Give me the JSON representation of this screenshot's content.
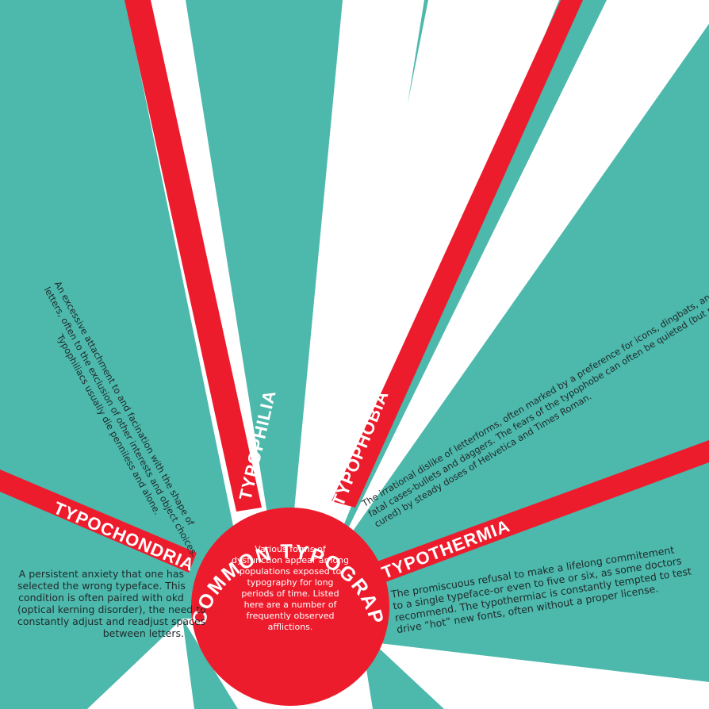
{
  "poster": {
    "colors": {
      "teal": "#4db8ac",
      "red": "#ec1c2d",
      "white": "#ffffff",
      "ink": "#1f2a2a"
    },
    "title": "COMMON TYPOGRAPHIC DISEASES",
    "intro": "Various forms of dysfunction appear among populations exposed to typography for long periods of time. Listed here are a number of frequently observed afflictions.",
    "diseases": [
      {
        "name": "TYPOCHONDRIA",
        "description_lines": [
          "A persistent anxiety that one has",
          "selected the wrong typeface. This",
          "condition is often paired with okd",
          "(optical kerning disorder), the need to",
          "constantly adjust and readjust spaces",
          "between letters."
        ]
      },
      {
        "name": "TYPOPHILIA",
        "description_lines": [
          "An excessive attachment to and facination with the shape of",
          "letters, often to the exclusion of other interests and object choices.",
          "Typophiliacs usually die penniless and alone."
        ]
      },
      {
        "name": "TYPOPHOBIA",
        "description_lines": [
          "The irrational dislike of letterforms, often marked by a preference for icons, dingbats, and-in",
          "fatal cases-bullets and daggers. The fears of the typophobe can often be quieted (but not",
          "cured) by steady doses of Helvetica and Times Roman."
        ]
      },
      {
        "name": "TYPOTHERMIA",
        "description_lines": [
          "The promiscuous refusal to make a lifelong commitement",
          "to a single typeface-or even to five or six, as some doctors",
          "recommend. The typothermiac is constantly tempted to test",
          "drive “hot” new fonts, often without a proper license."
        ]
      }
    ]
  }
}
